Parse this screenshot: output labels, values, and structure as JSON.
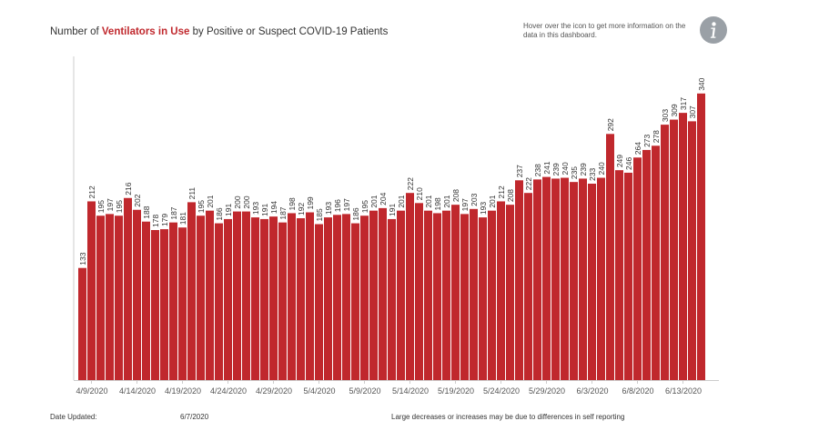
{
  "header": {
    "title_prefix": "Number of ",
    "title_highlight": "Ventilators in Use",
    "title_suffix": " by Positive or Suspect COVID-19 Patients",
    "hover_note": "Hover over the icon to get more information on the data in this dashboard.",
    "info_icon": "info-icon"
  },
  "footer": {
    "date_label": "Date Updated:",
    "date_value": "6/7/2020",
    "note": "Large decreases or increases may be due to differences in self reporting"
  },
  "colors": {
    "bar": "#c0282d",
    "axis": "#cccccc",
    "text": "#333333",
    "icon_bg": "#9aa0a6"
  },
  "chart_data": {
    "type": "bar",
    "title": "Number of Ventilators in Use by Positive or Suspect COVID-19 Patients",
    "xlabel": "",
    "ylabel": "",
    "ylim": [
      0,
      370
    ],
    "grid": false,
    "tick_labels": [
      "4/9/2020",
      "4/14/2020",
      "4/19/2020",
      "4/24/2020",
      "4/29/2020",
      "5/4/2020",
      "5/9/2020",
      "5/14/2020",
      "5/19/2020",
      "5/24/2020",
      "5/29/2020",
      "6/3/2020",
      "6/8/2020",
      "6/13/2020"
    ],
    "categories": [
      "4/8/2020",
      "4/9/2020",
      "4/10/2020",
      "4/11/2020",
      "4/12/2020",
      "4/13/2020",
      "4/14/2020",
      "4/15/2020",
      "4/16/2020",
      "4/17/2020",
      "4/18/2020",
      "4/19/2020",
      "4/20/2020",
      "4/21/2020",
      "4/22/2020",
      "4/23/2020",
      "4/24/2020",
      "4/25/2020",
      "4/26/2020",
      "4/27/2020",
      "4/28/2020",
      "4/29/2020",
      "4/30/2020",
      "5/1/2020",
      "5/2/2020",
      "5/3/2020",
      "5/4/2020",
      "5/5/2020",
      "5/6/2020",
      "5/7/2020",
      "5/8/2020",
      "5/9/2020",
      "5/10/2020",
      "5/11/2020",
      "5/12/2020",
      "5/13/2020",
      "5/14/2020",
      "5/15/2020",
      "5/16/2020",
      "5/17/2020",
      "5/18/2020",
      "5/19/2020",
      "5/20/2020",
      "5/21/2020",
      "5/22/2020",
      "5/23/2020",
      "5/24/2020",
      "5/25/2020",
      "5/26/2020",
      "5/27/2020",
      "5/28/2020",
      "5/29/2020",
      "5/30/2020",
      "5/31/2020",
      "6/1/2020",
      "6/2/2020",
      "6/3/2020",
      "6/4/2020",
      "6/5/2020",
      "6/6/2020",
      "6/7/2020",
      "6/8/2020",
      "6/9/2020",
      "6/10/2020",
      "6/11/2020",
      "6/12/2020",
      "6/13/2020",
      "6/14/2020",
      "6/15/2020"
    ],
    "values": [
      133,
      212,
      195,
      197,
      195,
      216,
      202,
      188,
      178,
      179,
      187,
      181,
      211,
      195,
      201,
      186,
      191,
      200,
      200,
      193,
      191,
      194,
      187,
      198,
      192,
      199,
      185,
      193,
      196,
      197,
      186,
      195,
      201,
      204,
      191,
      201,
      222,
      210,
      201,
      198,
      201,
      208,
      197,
      203,
      193,
      201,
      212,
      208,
      237,
      222,
      238,
      241,
      239,
      240,
      235,
      239,
      233,
      240,
      292,
      249,
      246,
      264,
      273,
      278,
      303,
      309,
      317,
      307,
      340
    ]
  }
}
